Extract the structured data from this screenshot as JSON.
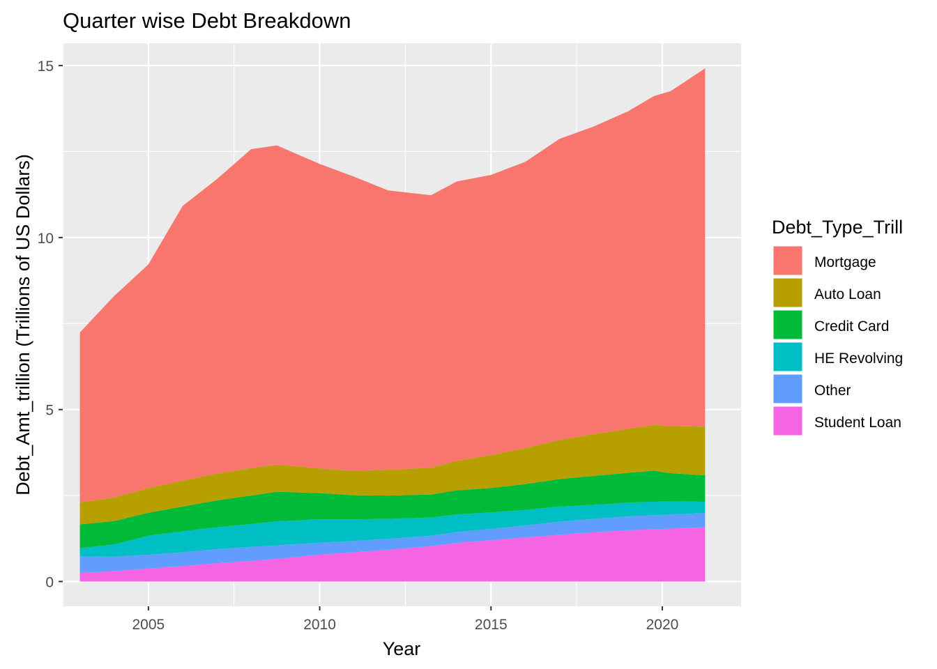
{
  "chart_data": {
    "type": "area",
    "stacked": true,
    "title": "Quarter wise Debt Breakdown",
    "xlabel": "Year",
    "ylabel": "Debt_Amt_trillion (Trillions of US Dollars)",
    "xlim": [
      2002.5,
      2022.3
    ],
    "ylim": [
      -0.72,
      15.65
    ],
    "x_ticks": [
      2005,
      2010,
      2015,
      2020
    ],
    "y_ticks": [
      0,
      5,
      10,
      15
    ],
    "grid": true,
    "legend": {
      "title": "Debt_Type_Trill",
      "position": "right",
      "items": [
        "Mortgage",
        "Auto Loan",
        "Credit Card",
        "HE Revolving",
        "Other",
        "Student Loan"
      ]
    },
    "colors": {
      "Mortgage": "#F8766D",
      "Auto Loan": "#B79F00",
      "Credit Card": "#00BA38",
      "HE Revolving": "#00BFC4",
      "Other": "#619CFF",
      "Student Loan": "#F564E3",
      "panel": "#EBEBEB",
      "grid": "#FFFFFF"
    },
    "x": [
      2003.0,
      2004.0,
      2005.0,
      2006.0,
      2007.0,
      2008.0,
      2008.75,
      2010.0,
      2011.0,
      2012.0,
      2013.25,
      2014.0,
      2015.0,
      2016.0,
      2017.0,
      2018.0,
      2019.0,
      2019.75,
      2020.25,
      2021.25
    ],
    "series": [
      {
        "name": "Student Loan",
        "values": [
          0.25,
          0.3,
          0.38,
          0.45,
          0.53,
          0.6,
          0.66,
          0.78,
          0.85,
          0.92,
          1.03,
          1.12,
          1.2,
          1.28,
          1.36,
          1.43,
          1.49,
          1.52,
          1.54,
          1.58
        ]
      },
      {
        "name": "Other",
        "values": [
          0.48,
          0.42,
          0.4,
          0.4,
          0.41,
          0.41,
          0.39,
          0.35,
          0.33,
          0.32,
          0.3,
          0.32,
          0.33,
          0.35,
          0.38,
          0.39,
          0.4,
          0.41,
          0.41,
          0.41
        ]
      },
      {
        "name": "HE Revolving",
        "values": [
          0.24,
          0.36,
          0.55,
          0.61,
          0.64,
          0.66,
          0.7,
          0.68,
          0.63,
          0.58,
          0.53,
          0.51,
          0.48,
          0.45,
          0.44,
          0.41,
          0.4,
          0.39,
          0.38,
          0.33
        ]
      },
      {
        "name": "Credit Card",
        "values": [
          0.69,
          0.68,
          0.67,
          0.72,
          0.78,
          0.83,
          0.86,
          0.76,
          0.7,
          0.68,
          0.67,
          0.7,
          0.71,
          0.75,
          0.8,
          0.84,
          0.87,
          0.9,
          0.82,
          0.77
        ]
      },
      {
        "name": "Auto Loan",
        "values": [
          0.64,
          0.68,
          0.72,
          0.75,
          0.78,
          0.8,
          0.79,
          0.72,
          0.71,
          0.75,
          0.78,
          0.86,
          0.96,
          1.05,
          1.14,
          1.22,
          1.28,
          1.33,
          1.37,
          1.41
        ]
      },
      {
        "name": "Mortgage",
        "values": [
          4.94,
          5.86,
          6.5,
          7.99,
          8.56,
          9.27,
          9.28,
          8.85,
          8.55,
          8.12,
          7.92,
          8.12,
          8.14,
          8.32,
          8.75,
          8.94,
          9.23,
          9.56,
          9.74,
          10.42
        ]
      }
    ]
  }
}
